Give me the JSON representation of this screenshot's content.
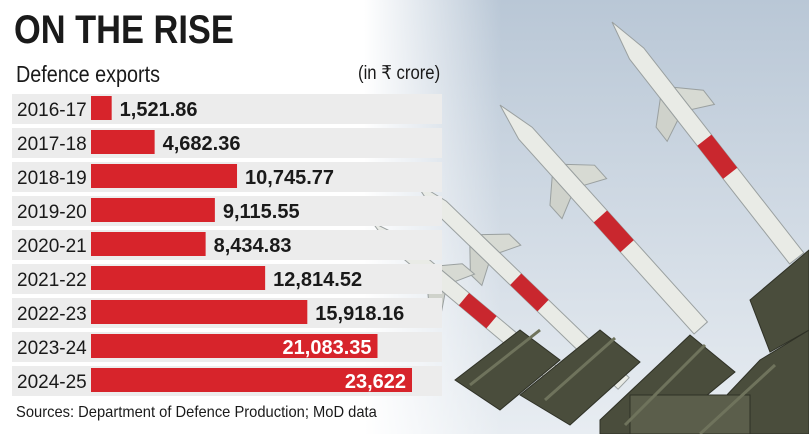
{
  "header": {
    "title": "ON THE RISE",
    "subtitle": "Defence exports",
    "unit": "(in ₹ crore)"
  },
  "footer": {
    "source": "Sources: Department of Defence Production; MoD data"
  },
  "colors": {
    "bar": "#d7242b",
    "row_band": "#ececec",
    "sky_top": "#b9c7d6",
    "sky_bottom": "#e6ebf1",
    "missile_body": "#e9ebe6",
    "missile_red": "#c9272e",
    "launcher": "#4a4d3c"
  },
  "chart_data": {
    "type": "bar",
    "orientation": "horizontal",
    "title": "ON THE RISE",
    "subtitle": "Defence exports",
    "unit": "(in ₹ crore)",
    "categories": [
      "2016-17",
      "2017-18",
      "2018-19",
      "2019-20",
      "2020-21",
      "2021-22",
      "2022-23",
      "2023-24",
      "2024-25"
    ],
    "values": [
      1521.86,
      4682.36,
      10745.77,
      9115.55,
      8434.83,
      12814.52,
      15918.16,
      21083.35,
      23622
    ],
    "value_labels": [
      "1,521.86",
      "4,682.36",
      "10,745.77",
      "9,115.55",
      "8,434.83",
      "12,814.52",
      "15,918.16",
      "21,083.35",
      "23,622"
    ],
    "labels_inside": [
      false,
      false,
      false,
      false,
      false,
      false,
      false,
      true,
      true
    ],
    "xlim": [
      0,
      23622
    ],
    "grid": false,
    "legend": "none"
  }
}
